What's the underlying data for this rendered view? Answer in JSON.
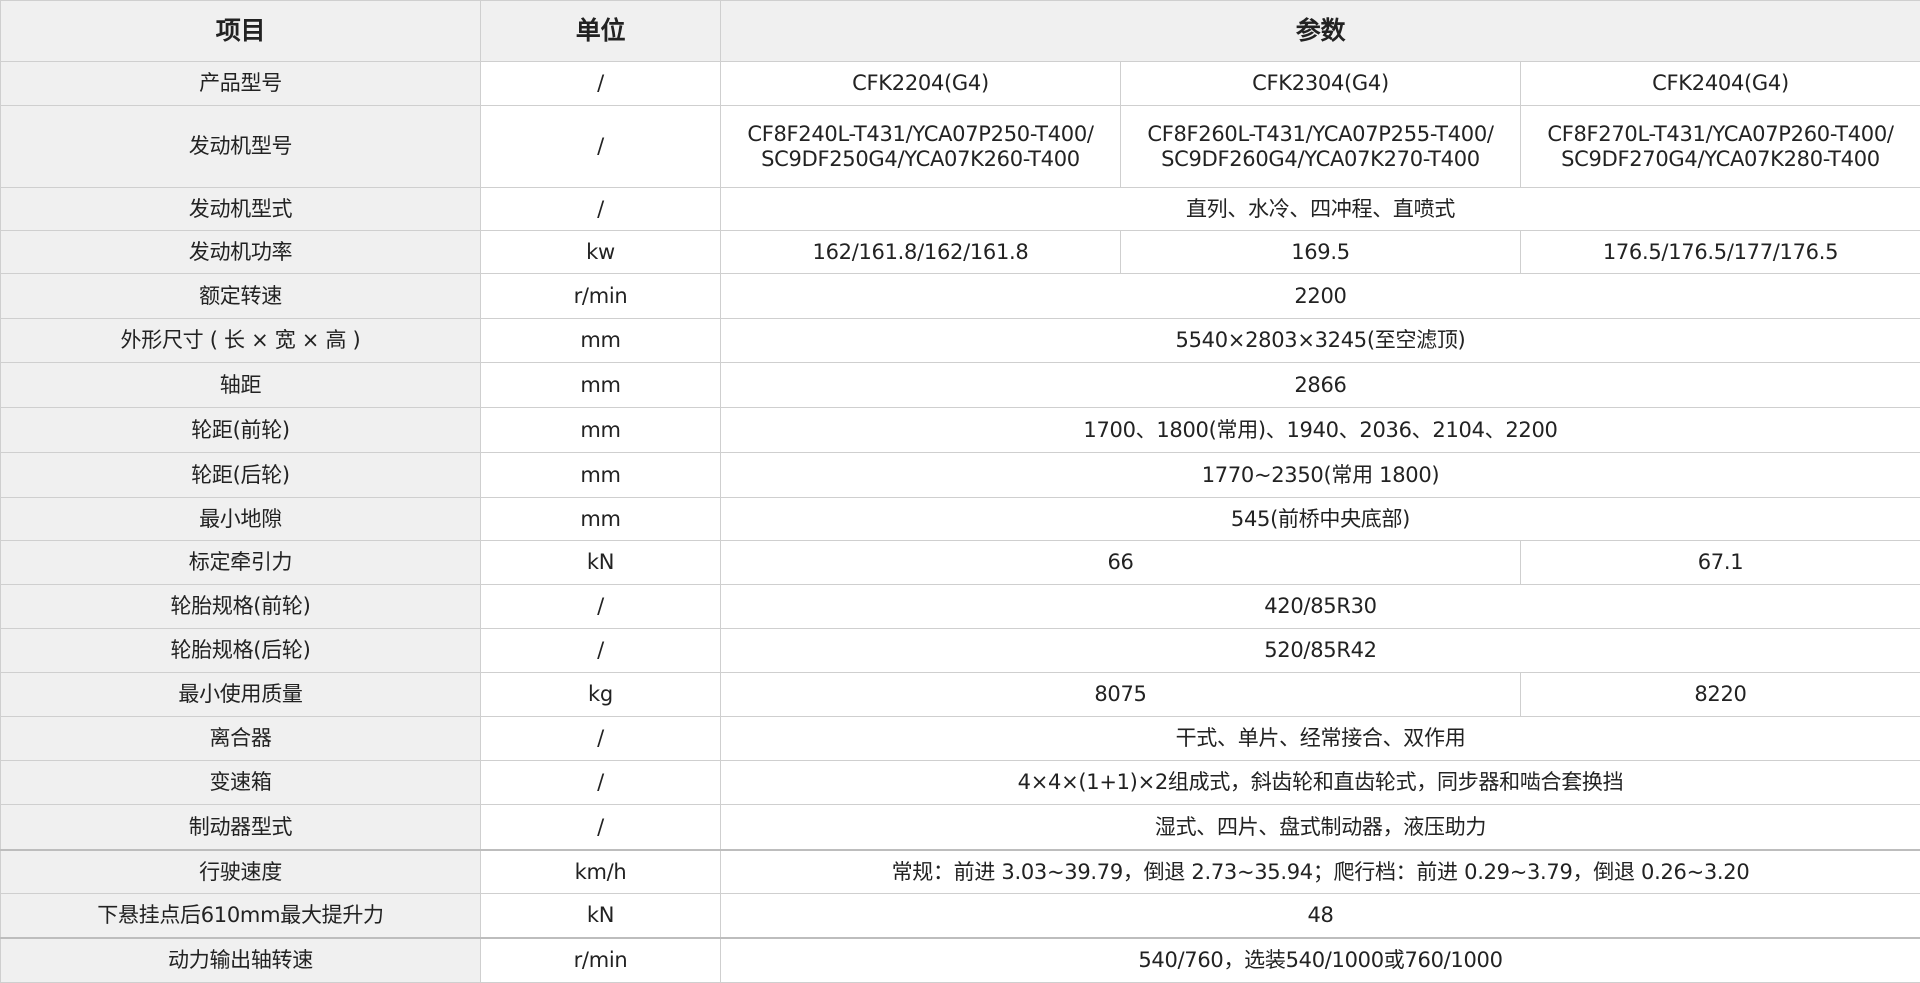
{
  "header": {
    "item": "项目",
    "unit": "单位",
    "params": "参数"
  },
  "rows": [
    {
      "item": "产品型号",
      "unit": "/",
      "cells": [
        "CFK2204(G4)",
        "CFK2304(G4)",
        "CFK2404(G4)"
      ],
      "span": [
        1,
        1,
        1
      ]
    },
    {
      "item": "发动机型号",
      "unit": "/",
      "cells": [
        "CF8F240L-T431/YCA07P250-T400/\nSC9DF250G4/YCA07K260-T400",
        "CF8F260L-T431/YCA07P255-T400/\nSC9DF260G4/YCA07K270-T400",
        "CF8F270L-T431/YCA07P260-T400/\nSC9DF270G4/YCA07K280-T400"
      ],
      "span": [
        1,
        1,
        1
      ]
    },
    {
      "item": "发动机型式",
      "unit": "/",
      "cells": [
        "直列、水冷、四冲程、直喷式"
      ],
      "span": [
        3
      ]
    },
    {
      "item": "发动机功率",
      "unit": "kw",
      "cells": [
        "162/161.8/162/161.8",
        "169.5",
        "176.5/176.5/177/176.5"
      ],
      "span": [
        1,
        1,
        1
      ]
    },
    {
      "item": "额定转速",
      "unit": "r/min",
      "cells": [
        "2200"
      ],
      "span": [
        3
      ]
    },
    {
      "item": "外形尺寸 ( 长 × 宽 × 高 )",
      "unit": "mm",
      "cells": [
        "5540×2803×3245(至空滤顶)"
      ],
      "span": [
        3
      ]
    },
    {
      "item": "轴距",
      "unit": "mm",
      "cells": [
        "2866"
      ],
      "span": [
        3
      ]
    },
    {
      "item": "轮距(前轮)",
      "unit": "mm",
      "cells": [
        "1700、1800(常用)、1940、2036、2104、2200"
      ],
      "span": [
        3
      ]
    },
    {
      "item": "轮距(后轮)",
      "unit": "mm",
      "cells": [
        "1770~2350(常用 1800)"
      ],
      "span": [
        3
      ]
    },
    {
      "item": "最小地隙",
      "unit": "mm",
      "cells": [
        "545(前桥中央底部)"
      ],
      "span": [
        3
      ]
    },
    {
      "item": "标定牵引力",
      "unit": "kN",
      "cells": [
        "66",
        "67.1"
      ],
      "span": [
        2,
        1
      ]
    },
    {
      "item": "轮胎规格(前轮)",
      "unit": "/",
      "cells": [
        "420/85R30"
      ],
      "span": [
        3
      ]
    },
    {
      "item": "轮胎规格(后轮)",
      "unit": "/",
      "cells": [
        "520/85R42"
      ],
      "span": [
        3
      ]
    },
    {
      "item": "最小使用质量",
      "unit": "kg",
      "cells": [
        "8075",
        "8220"
      ],
      "span": [
        2,
        1
      ]
    },
    {
      "item": "离合器",
      "unit": "/",
      "cells": [
        "干式、单片、经常接合、双作用"
      ],
      "span": [
        3
      ]
    },
    {
      "item": "变速箱",
      "unit": "/",
      "cells": [
        "4×4×(1+1)×2组成式，斜齿轮和直齿轮式，同步器和啮合套换挡"
      ],
      "span": [
        3
      ]
    },
    {
      "item": "制动器型式",
      "unit": "/",
      "cells": [
        "湿式、四片、盘式制动器，液压助力"
      ],
      "span": [
        3
      ]
    },
    {
      "item": "行驶速度",
      "unit": "km/h",
      "cells": [
        "常规：前进 3.03~39.79，倒退 2.73~35.94；爬行档：前进 0.29~3.79，倒退 0.26~3.20"
      ],
      "span": [
        3
      ]
    },
    {
      "item": "下悬挂点后610mm最大提升力",
      "unit": "kN",
      "cells": [
        "48"
      ],
      "span": [
        3
      ]
    },
    {
      "item": "动力输出轴转速",
      "unit": "r/min",
      "cells": [
        "540/760，选装540/1000或760/1000"
      ],
      "span": [
        3
      ]
    }
  ]
}
